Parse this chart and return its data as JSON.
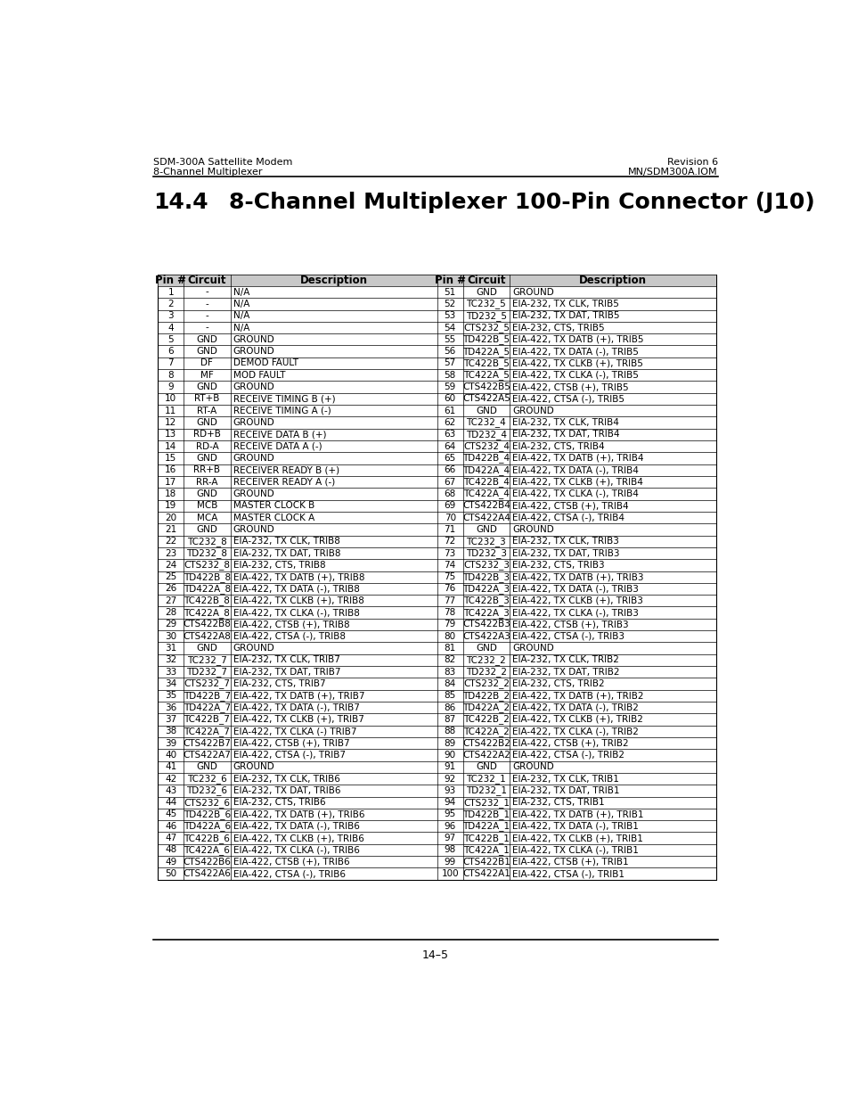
{
  "header_left_line1": "SDM-300A Sattellite Modem",
  "header_left_line2": "8-Channel Multiplexer",
  "header_right_line1": "Revision 6",
  "header_right_line2": "MN/SDM300A.IOM",
  "section_number": "14.4",
  "section_title": "8-Channel Multiplexer 100-Pin Connector (J10)",
  "footer_text": "14–5",
  "col_headers": [
    "Pin #",
    "Circuit",
    "Description",
    "Pin #",
    "Circuit",
    "Description"
  ],
  "left_pins": [
    [
      "1",
      "-",
      "N/A"
    ],
    [
      "2",
      "-",
      "N/A"
    ],
    [
      "3",
      "-",
      "N/A"
    ],
    [
      "4",
      "-",
      "N/A"
    ],
    [
      "5",
      "GND",
      "GROUND"
    ],
    [
      "6",
      "GND",
      "GROUND"
    ],
    [
      "7",
      "DF",
      "DEMOD FAULT"
    ],
    [
      "8",
      "MF",
      "MOD FAULT"
    ],
    [
      "9",
      "GND",
      "GROUND"
    ],
    [
      "10",
      "RT+B",
      "RECEIVE TIMING B (+)"
    ],
    [
      "11",
      "RT-A",
      "RECEIVE TIMING A (-)"
    ],
    [
      "12",
      "GND",
      "GROUND"
    ],
    [
      "13",
      "RD+B",
      "RECEIVE DATA B (+)"
    ],
    [
      "14",
      "RD-A",
      "RECEIVE DATA A (-)"
    ],
    [
      "15",
      "GND",
      "GROUND"
    ],
    [
      "16",
      "RR+B",
      "RECEIVER READY B (+)"
    ],
    [
      "17",
      "RR-A",
      "RECEIVER READY A (-)"
    ],
    [
      "18",
      "GND",
      "GROUND"
    ],
    [
      "19",
      "MCB",
      "MASTER CLOCK B"
    ],
    [
      "20",
      "MCA",
      "MASTER CLOCK A"
    ],
    [
      "21",
      "GND",
      "GROUND"
    ],
    [
      "22",
      "TC232_8",
      "EIA-232, TX CLK, TRIB8"
    ],
    [
      "23",
      "TD232_8",
      "EIA-232, TX DAT, TRIB8"
    ],
    [
      "24",
      "CTS232_8",
      "EIA-232, CTS, TRIB8"
    ],
    [
      "25",
      "TD422B_8",
      "EIA-422, TX DATB (+), TRIB8"
    ],
    [
      "26",
      "TD422A_8",
      "EIA-422, TX DATA (-), TRIB8"
    ],
    [
      "27",
      "TC422B_8",
      "EIA-422, TX CLKB (+), TRIB8"
    ],
    [
      "28",
      "TC422A_8",
      "EIA-422, TX CLKA (-), TRIB8"
    ],
    [
      "29",
      "CTS422B8",
      "EIA-422, CTSB (+), TRIB8"
    ],
    [
      "30",
      "CTS422A8",
      "EIA-422, CTSA (-), TRIB8"
    ],
    [
      "31",
      "GND",
      "GROUND"
    ],
    [
      "32",
      "TC232_7",
      "EIA-232, TX CLK, TRIB7"
    ],
    [
      "33",
      "TD232_7",
      "EIA-232, TX DAT, TRIB7"
    ],
    [
      "34",
      "CTS232_7",
      "EIA-232, CTS, TRIB7"
    ],
    [
      "35",
      "TD422B_7",
      "EIA-422, TX DATB (+), TRIB7"
    ],
    [
      "36",
      "TD422A_7",
      "EIA-422, TX DATA (-), TRIB7"
    ],
    [
      "37",
      "TC422B_7",
      "EIA-422, TX CLKB (+), TRIB7"
    ],
    [
      "38",
      "TC422A_7",
      "EIA-422, TX CLKA (-) TRIB7"
    ],
    [
      "39",
      "CTS422B7",
      "EIA-422, CTSB (+), TRIB7"
    ],
    [
      "40",
      "CTS422A7",
      "EIA-422, CTSA (-), TRIB7"
    ],
    [
      "41",
      "GND",
      "GROUND"
    ],
    [
      "42",
      "TC232_6",
      "EIA-232, TX CLK, TRIB6"
    ],
    [
      "43",
      "TD232_6",
      "EIA-232, TX DAT, TRIB6"
    ],
    [
      "44",
      "CTS232_6",
      "EIA-232, CTS, TRIB6"
    ],
    [
      "45",
      "TD422B_6",
      "EIA-422, TX DATB (+), TRIB6"
    ],
    [
      "46",
      "TD422A_6",
      "EIA-422, TX DATA (-), TRIB6"
    ],
    [
      "47",
      "TC422B_6",
      "EIA-422, TX CLKB (+), TRIB6"
    ],
    [
      "48",
      "TC422A_6",
      "EIA-422, TX CLKA (-), TRIB6"
    ],
    [
      "49",
      "CTS422B6",
      "EIA-422, CTSB (+), TRIB6"
    ],
    [
      "50",
      "CTS422A6",
      "EIA-422, CTSA (-), TRIB6"
    ]
  ],
  "right_pins": [
    [
      "51",
      "GND",
      "GROUND"
    ],
    [
      "52",
      "TC232_5",
      "EIA-232, TX CLK, TRIB5"
    ],
    [
      "53",
      "TD232_5",
      "EIA-232, TX DAT, TRIB5"
    ],
    [
      "54",
      "CTS232_5",
      "EIA-232, CTS, TRIB5"
    ],
    [
      "55",
      "TD422B_5",
      "EIA-422, TX DATB (+), TRIB5"
    ],
    [
      "56",
      "TD422A_5",
      "EIA-422, TX DATA (-), TRIB5"
    ],
    [
      "57",
      "TC422B_5",
      "EIA-422, TX CLKB (+), TRIB5"
    ],
    [
      "58",
      "TC422A_5",
      "EIA-422, TX CLKA (-), TRIB5"
    ],
    [
      "59",
      "CTS422B5",
      "EIA-422, CTSB (+), TRIB5"
    ],
    [
      "60",
      "CTS422A5",
      "EIA-422, CTSA (-), TRIB5"
    ],
    [
      "61",
      "GND",
      "GROUND"
    ],
    [
      "62",
      "TC232_4",
      "EIA-232, TX CLK, TRIB4"
    ],
    [
      "63",
      "TD232_4",
      "EIA-232, TX DAT, TRIB4"
    ],
    [
      "64",
      "CTS232_4",
      "EIA-232, CTS, TRIB4"
    ],
    [
      "65",
      "TD422B_4",
      "EIA-422, TX DATB (+), TRIB4"
    ],
    [
      "66",
      "TD422A_4",
      "EIA-422, TX DATA (-), TRIB4"
    ],
    [
      "67",
      "TC422B_4",
      "EIA-422, TX CLKB (+), TRIB4"
    ],
    [
      "68",
      "TC422A_4",
      "EIA-422, TX CLKA (-), TRIB4"
    ],
    [
      "69",
      "CTS422B4",
      "EIA-422, CTSB (+), TRIB4"
    ],
    [
      "70",
      "CTS422A4",
      "EIA-422, CTSA (-), TRIB4"
    ],
    [
      "71",
      "GND",
      "GROUND"
    ],
    [
      "72",
      "TC232_3",
      "EIA-232, TX CLK, TRIB3"
    ],
    [
      "73",
      "TD232_3",
      "EIA-232, TX DAT, TRIB3"
    ],
    [
      "74",
      "CTS232_3",
      "EIA-232, CTS, TRIB3"
    ],
    [
      "75",
      "TD422B_3",
      "EIA-422, TX DATB (+), TRIB3"
    ],
    [
      "76",
      "TD422A_3",
      "EIA-422, TX DATA (-), TRIB3"
    ],
    [
      "77",
      "TC422B_3",
      "EIA-422, TX CLKB (+), TRIB3"
    ],
    [
      "78",
      "TC422A_3",
      "EIA-422, TX CLKA (-), TRIB3"
    ],
    [
      "79",
      "CTS422B3",
      "EIA-422, CTSB (+), TRIB3"
    ],
    [
      "80",
      "CTS422A3",
      "EIA-422, CTSA (-), TRIB3"
    ],
    [
      "81",
      "GND",
      "GROUND"
    ],
    [
      "82",
      "TC232_2",
      "EIA-232, TX CLK, TRIB2"
    ],
    [
      "83",
      "TD232_2",
      "EIA-232, TX DAT, TRIB2"
    ],
    [
      "84",
      "CTS232_2",
      "EIA-232, CTS, TRIB2"
    ],
    [
      "85",
      "TD422B_2",
      "EIA-422, TX DATB (+), TRIB2"
    ],
    [
      "86",
      "TD422A_2",
      "EIA-422, TX DATA (-), TRIB2"
    ],
    [
      "87",
      "TC422B_2",
      "EIA-422, TX CLKB (+), TRIB2"
    ],
    [
      "88",
      "TC422A_2",
      "EIA-422, TX CLKA (-), TRIB2"
    ],
    [
      "89",
      "CTS422B2",
      "EIA-422, CTSB (+), TRIB2"
    ],
    [
      "90",
      "CTS422A2",
      "EIA-422, CTSA (-), TRIB2"
    ],
    [
      "91",
      "GND",
      "GROUND"
    ],
    [
      "92",
      "TC232_1",
      "EIA-232, TX CLK, TRIB1"
    ],
    [
      "93",
      "TD232_1",
      "EIA-232, TX DAT, TRIB1"
    ],
    [
      "94",
      "CTS232_1",
      "EIA-232, CTS, TRIB1"
    ],
    [
      "95",
      "TD422B_1",
      "EIA-422, TX DATB (+), TRIB1"
    ],
    [
      "96",
      "TD422A_1",
      "EIA-422, TX DATA (-), TRIB1"
    ],
    [
      "97",
      "TC422B_1",
      "EIA-422, TX CLKB (+), TRIB1"
    ],
    [
      "98",
      "TC422A_1",
      "EIA-422, TX CLKA (-), TRIB1"
    ],
    [
      "99",
      "CTS422B1",
      "EIA-422, CTSB (+), TRIB1"
    ],
    [
      "100",
      "CTS422A1",
      "EIA-422, CTSA (-), TRIB1"
    ]
  ]
}
